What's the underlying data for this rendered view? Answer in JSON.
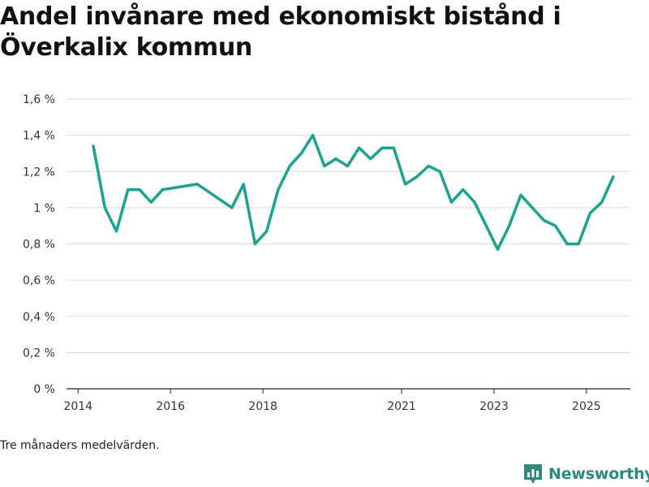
{
  "chart_data": {
    "type": "line",
    "title": "Andel invånare med ekonomiskt bistånd i Överkalix kommun",
    "xlabel": "",
    "ylabel": "",
    "ylim": [
      0,
      1.6
    ],
    "y_ticks": [
      0,
      0.2,
      0.4,
      0.6,
      0.8,
      1.0,
      1.2,
      1.4,
      1.6
    ],
    "y_tick_labels": [
      "0 %",
      "0,2 %",
      "0,4 %",
      "0,6 %",
      "0,8 %",
      "1 %",
      "1,2 %",
      "1,4 %",
      "1,6 %"
    ],
    "x_range": [
      2013.75,
      2025.95
    ],
    "x_ticks": [
      2014,
      2016,
      2018,
      2021,
      2023,
      2025
    ],
    "x_tick_labels": [
      "2014",
      "2016",
      "2018",
      "2021",
      "2023",
      "2025"
    ],
    "grid": true,
    "line_color": "#1aa38f",
    "series": [
      {
        "name": "Andel invånare med ekonomiskt bistånd",
        "x": [
          2014.33,
          2014.58,
          2014.83,
          2015.08,
          2015.33,
          2015.58,
          2015.83,
          2016.58,
          2017.33,
          2017.58,
          2017.83,
          2018.08,
          2018.33,
          2018.58,
          2018.83,
          2019.08,
          2019.33,
          2019.58,
          2019.83,
          2020.08,
          2020.33,
          2020.58,
          2020.83,
          2021.08,
          2021.33,
          2021.58,
          2021.83,
          2022.08,
          2022.33,
          2022.58,
          2022.83,
          2023.08,
          2023.33,
          2023.58,
          2023.83,
          2024.08,
          2024.33,
          2024.58,
          2024.83,
          2025.08,
          2025.33,
          2025.58
        ],
        "values": [
          1.34,
          1.0,
          0.87,
          1.1,
          1.1,
          1.03,
          1.1,
          1.13,
          1.0,
          1.13,
          0.8,
          0.87,
          1.1,
          1.23,
          1.3,
          1.4,
          1.23,
          1.27,
          1.23,
          1.33,
          1.27,
          1.33,
          1.33,
          1.13,
          1.17,
          1.23,
          1.2,
          1.03,
          1.1,
          1.03,
          0.9,
          0.77,
          0.9,
          1.07,
          1.0,
          0.93,
          0.9,
          0.8,
          0.8,
          0.97,
          1.03,
          1.17
        ]
      }
    ]
  },
  "footnote": "Tre månaders medelvärden.",
  "brand": {
    "name": "Newsworthy",
    "icon": "newsworthy-logo-icon",
    "color": "#2e8a7a"
  }
}
